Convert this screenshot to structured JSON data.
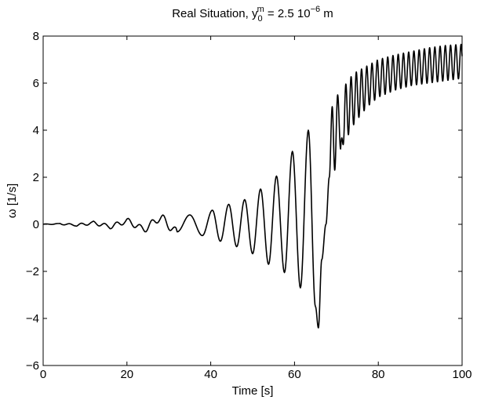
{
  "chart_data": {
    "type": "line",
    "title": "Real Situation, y",
    "title_sub": "0",
    "title_sup": "m",
    "title_rest": " = 2.5 10",
    "title_exp": "−6",
    "title_unit": " m",
    "xlabel": "Time [s]",
    "ylabel": "ω [1/s]",
    "xlim": [
      0,
      100
    ],
    "ylim": [
      -6,
      8
    ],
    "xticks": [
      0,
      20,
      40,
      60,
      80,
      100
    ],
    "yticks": [
      -6,
      -4,
      -2,
      0,
      2,
      4,
      6,
      8
    ],
    "grid": false,
    "line_color": "#000000",
    "series": [
      {
        "x": [
          0,
          4,
          8,
          12,
          16,
          20,
          24,
          28,
          32,
          35,
          38,
          40.4,
          42.3,
          44.3,
          46.2,
          48.1,
          50,
          51.9,
          53.8,
          55.7,
          57.6,
          59.5,
          61.4,
          63.3,
          65,
          65.7,
          66.5,
          67.5,
          68.3,
          69,
          69.6,
          70.3,
          71,
          72,
          74,
          76,
          78,
          80,
          84,
          88,
          92,
          96,
          100
        ],
        "y": [
          0,
          0.02,
          -0.03,
          0.05,
          -0.08,
          0.12,
          -0.18,
          0.25,
          -0.32,
          0.4,
          -0.48,
          0.6,
          -0.72,
          0.85,
          -0.95,
          1.05,
          -1.25,
          1.5,
          -1.7,
          2.05,
          -2.05,
          3.1,
          -2.7,
          4.0,
          -3.5,
          -4.4,
          -1.5,
          0,
          2.0,
          5.0,
          2.3,
          5.5,
          3.2,
          5.9,
          6.4,
          6.6,
          6.8,
          7.0,
          7.2,
          7.35,
          7.5,
          7.6,
          7.65
        ],
        "y_lower_envelope": [
          0,
          0.02,
          -0.03,
          0.05,
          -0.08,
          0.12,
          -0.18,
          0.25,
          -0.32,
          0.4,
          -0.48,
          0.6,
          -0.72,
          0.85,
          -0.95,
          1.05,
          -1.25,
          1.5,
          -1.7,
          2.05,
          -2.05,
          3.1,
          -2.7,
          4.0,
          -3.5,
          -4.4,
          -1.5,
          0,
          2.0,
          5.0,
          2.3,
          5.5,
          3.2,
          3.5,
          4.2,
          4.7,
          5.1,
          5.4,
          5.7,
          5.9,
          6.0,
          6.1,
          6.2
        ]
      }
    ]
  }
}
